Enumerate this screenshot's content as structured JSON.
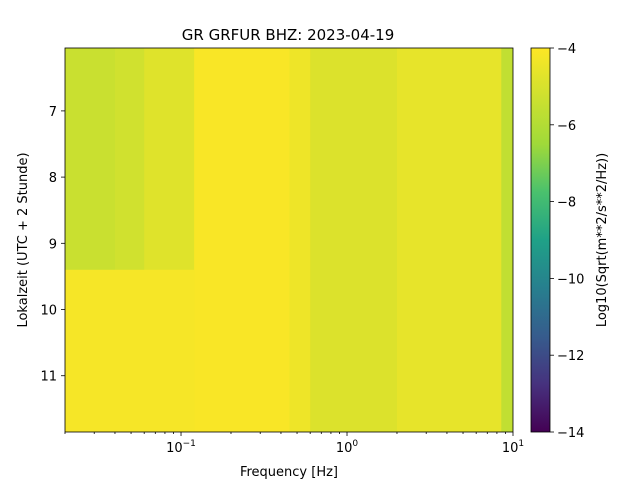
{
  "chart_data": {
    "type": "heatmap",
    "title": "GR GRFUR  BHZ: 2023-04-19",
    "xlabel": "Frequency [Hz]",
    "ylabel": "Lokalzeit (UTC + 2 Stunde)",
    "x_scale": "log",
    "xlim": [
      0.02,
      10
    ],
    "x_ticks": [
      0.1,
      1,
      10
    ],
    "x_tick_labels": [
      {
        "base": "10",
        "exp": "−1"
      },
      {
        "base": "10",
        "exp": "0"
      },
      {
        "base": "10",
        "exp": "1"
      }
    ],
    "ylim": [
      11.85,
      6.05
    ],
    "y_ticks": [
      7,
      8,
      9,
      10,
      11
    ],
    "y_tick_labels": [
      "7",
      "8",
      "9",
      "10",
      "11"
    ],
    "colorbar": {
      "label": "Log10(Sqrt(m**2/s**2/Hz))",
      "min": -14,
      "max": -4,
      "ticks": [
        -4,
        -6,
        -8,
        -10,
        -12,
        -14
      ],
      "tick_labels": [
        "−4",
        "−6",
        "−8",
        "−10",
        "−12",
        "−14"
      ],
      "colormap": "viridis"
    },
    "description_regions": [
      {
        "time": [
          6.05,
          9.4
        ],
        "freq": [
          0.02,
          0.04
        ],
        "value": -5.4
      },
      {
        "time": [
          6.05,
          9.4
        ],
        "freq": [
          0.04,
          0.06
        ],
        "value": -5.2
      },
      {
        "time": [
          6.05,
          9.4
        ],
        "freq": [
          0.06,
          0.12
        ],
        "value": -4.8
      },
      {
        "time": [
          6.05,
          11.85
        ],
        "freq": [
          0.12,
          0.45
        ],
        "value": -4.1
      },
      {
        "time": [
          9.4,
          11.85
        ],
        "freq": [
          0.02,
          0.12
        ],
        "value": -4.2
      },
      {
        "time": [
          6.05,
          11.85
        ],
        "freq": [
          0.45,
          0.6
        ],
        "value": -4.4
      },
      {
        "time": [
          6.05,
          11.85
        ],
        "freq": [
          0.6,
          2.0
        ],
        "value": -4.9
      },
      {
        "time": [
          6.05,
          11.85
        ],
        "freq": [
          2.0,
          8.5
        ],
        "value": -4.6
      },
      {
        "time": [
          6.05,
          11.85
        ],
        "freq": [
          8.5,
          10
        ],
        "value": -5.6
      }
    ]
  }
}
